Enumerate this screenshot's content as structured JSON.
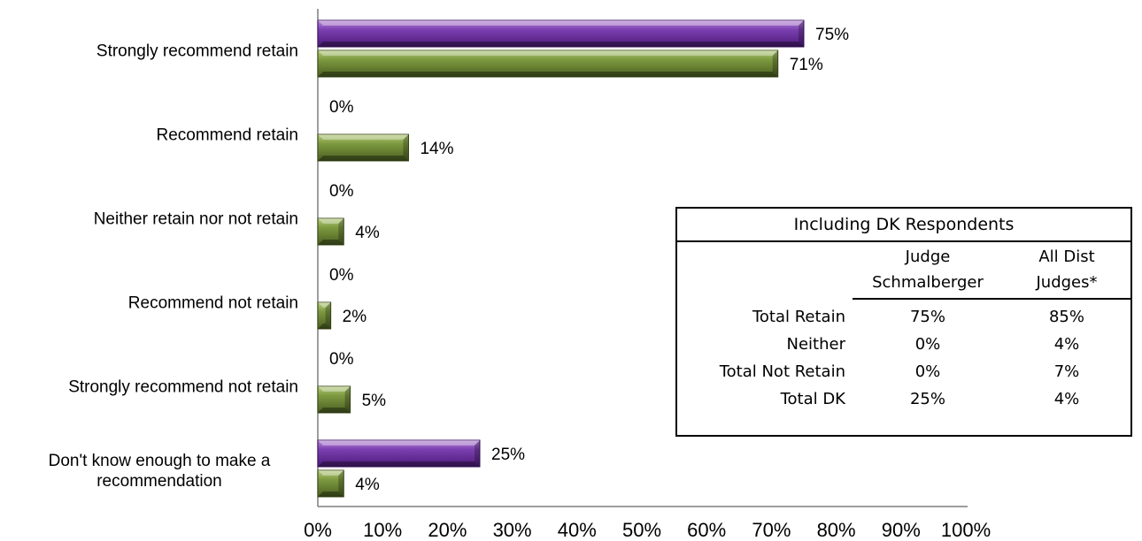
{
  "chart_data": {
    "type": "bar",
    "orientation": "horizontal",
    "categories": [
      "Strongly recommend retain",
      "Recommend retain",
      "Neither retain nor not retain",
      "Recommend not retain",
      "Strongly recommend not retain",
      "Don't know enough to make a recommendation"
    ],
    "category_lines": [
      [
        "Strongly recommend retain"
      ],
      [
        "Recommend retain"
      ],
      [
        "Neither retain nor not retain"
      ],
      [
        "Recommend not retain"
      ],
      [
        "Strongly recommend not retain"
      ],
      [
        "Don't know enough to make a",
        "recommendation"
      ]
    ],
    "series": [
      {
        "values": [
          75,
          0,
          0,
          0,
          0,
          25
        ],
        "labels": [
          "75%",
          "0%",
          "0%",
          "0%",
          "0%",
          "25%"
        ],
        "color": "#7030a0"
      },
      {
        "values": [
          71,
          14,
          4,
          2,
          5,
          4
        ],
        "labels": [
          "71%",
          "14%",
          "4%",
          "2%",
          "5%",
          "4%"
        ],
        "color": "#77933c"
      }
    ],
    "xlim": [
      0,
      100
    ],
    "xticks": [
      "0%",
      "10%",
      "20%",
      "30%",
      "40%",
      "50%",
      "60%",
      "70%",
      "80%",
      "90%",
      "100%"
    ],
    "grid": false,
    "legend": "none"
  },
  "table": {
    "title": "Including DK Respondents",
    "headers": [
      [
        "Judge",
        "Schmalberger"
      ],
      [
        "All Dist",
        "Judges*"
      ]
    ],
    "rows": [
      {
        "label": "Total Retain",
        "judge": "75%",
        "all": "85%"
      },
      {
        "label": "Neither",
        "judge": "0%",
        "all": "4%"
      },
      {
        "label": "Total Not Retain",
        "judge": "0%",
        "all": "7%"
      },
      {
        "label": "Total DK",
        "judge": "25%",
        "all": "4%"
      }
    ]
  }
}
